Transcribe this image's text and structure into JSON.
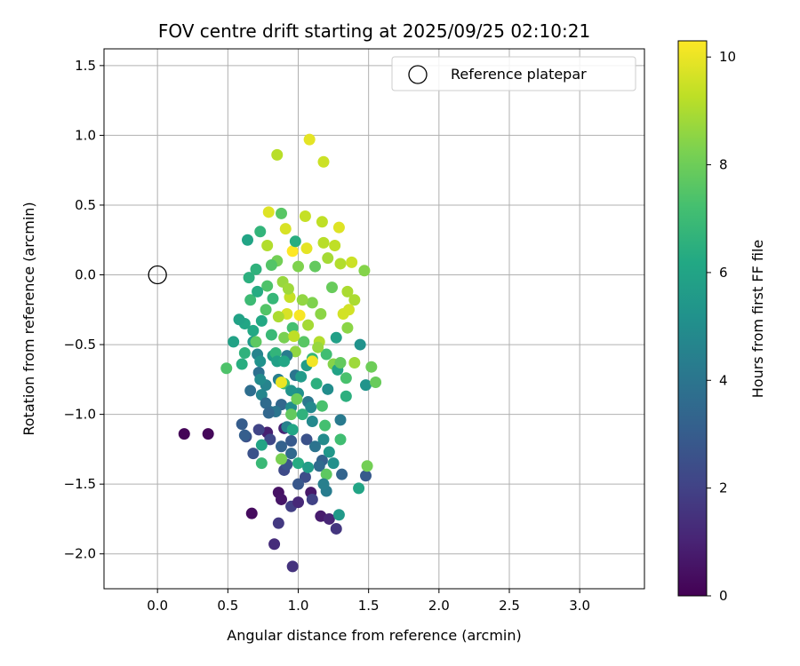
{
  "chart_data": {
    "type": "scatter",
    "title": "FOV centre drift starting at 2025/09/25 02:10:21",
    "xlabel": "Angular distance from reference (arcmin)",
    "ylabel": "Rotation from reference (arcmin)",
    "xlim": [
      -0.38,
      3.46
    ],
    "ylim": [
      -2.25,
      1.62
    ],
    "xticks": [
      0.0,
      0.5,
      1.0,
      1.5,
      2.0,
      2.5,
      3.0
    ],
    "xtick_labels": [
      "0.0",
      "0.5",
      "1.0",
      "1.5",
      "2.0",
      "2.5",
      "3.0"
    ],
    "yticks": [
      -2.0,
      -1.5,
      -1.0,
      -0.5,
      0.0,
      0.5,
      1.0,
      1.5
    ],
    "ytick_labels": [
      "−2.0",
      "−1.5",
      "−1.0",
      "−0.5",
      "0.0",
      "0.5",
      "1.0",
      "1.5"
    ],
    "grid": true,
    "legend": {
      "position": "top-right",
      "entries": [
        "Reference platepar"
      ]
    },
    "colorbar": {
      "label": "Hours from first FF file",
      "range": [
        0,
        10.3
      ],
      "ticks": [
        0,
        2,
        4,
        6,
        8,
        10
      ],
      "tick_labels": [
        "0",
        "2",
        "4",
        "6",
        "8",
        "10"
      ],
      "colormap": "viridis"
    },
    "reference_point": {
      "x": 0.0,
      "y": 0.0
    },
    "points": [
      [
        0.19,
        -1.14,
        0.1
      ],
      [
        0.36,
        -1.14,
        0.2
      ],
      [
        0.67,
        -1.71,
        0.3
      ],
      [
        0.86,
        -1.56,
        0.5
      ],
      [
        0.88,
        -1.61,
        0.6
      ],
      [
        1.09,
        -1.56,
        0.7
      ],
      [
        1.16,
        -1.73,
        0.8
      ],
      [
        0.78,
        -1.13,
        0.9
      ],
      [
        0.9,
        -1.1,
        1.0
      ],
      [
        1.22,
        -1.75,
        1.1
      ],
      [
        0.83,
        -1.93,
        1.3
      ],
      [
        0.96,
        -2.09,
        1.5
      ],
      [
        1.27,
        -1.82,
        1.6
      ],
      [
        0.86,
        -1.78,
        1.7
      ],
      [
        0.95,
        -1.66,
        1.9
      ],
      [
        1.1,
        -1.61,
        2.0
      ],
      [
        0.72,
        -1.11,
        2.1
      ],
      [
        0.8,
        -1.18,
        2.2
      ],
      [
        0.9,
        -1.4,
        2.3
      ],
      [
        1.05,
        -1.45,
        2.4
      ],
      [
        0.63,
        -1.16,
        2.5
      ],
      [
        0.68,
        -1.28,
        2.6
      ],
      [
        0.92,
        -1.36,
        2.7
      ],
      [
        1.0,
        -1.5,
        2.8
      ],
      [
        1.48,
        -1.44,
        2.9
      ],
      [
        0.6,
        -1.07,
        3.0
      ],
      [
        0.62,
        -1.15,
        3.1
      ],
      [
        1.17,
        -1.33,
        3.2
      ],
      [
        1.31,
        -1.43,
        3.3
      ],
      [
        0.88,
        -0.93,
        3.4
      ],
      [
        0.95,
        -1.28,
        3.5
      ],
      [
        1.15,
        -1.37,
        3.6
      ],
      [
        0.66,
        -0.83,
        3.7
      ],
      [
        0.72,
        -0.7,
        3.8
      ],
      [
        0.8,
        -0.98,
        3.9
      ],
      [
        0.98,
        -0.72,
        4.0
      ],
      [
        1.07,
        -0.91,
        4.1
      ],
      [
        1.3,
        -1.04,
        4.2
      ],
      [
        1.2,
        -1.55,
        4.3
      ],
      [
        0.86,
        -0.75,
        4.4
      ],
      [
        0.92,
        -1.09,
        4.5
      ],
      [
        0.71,
        -0.57,
        4.6
      ],
      [
        0.74,
        -0.86,
        4.7
      ],
      [
        1.1,
        -1.05,
        4.8
      ],
      [
        1.18,
        -1.18,
        4.9
      ],
      [
        0.95,
        -0.95,
        5.0
      ],
      [
        1.0,
        -0.85,
        5.1
      ],
      [
        1.44,
        -0.5,
        5.2
      ],
      [
        1.48,
        -0.79,
        5.3
      ],
      [
        1.22,
        -1.27,
        5.4
      ],
      [
        1.29,
        -1.72,
        5.5
      ],
      [
        0.82,
        -0.58,
        5.6
      ],
      [
        1.06,
        -0.65,
        5.7
      ],
      [
        1.27,
        -0.45,
        5.8
      ],
      [
        0.54,
        -0.48,
        5.9
      ],
      [
        1.43,
        -1.53,
        6.0
      ],
      [
        0.96,
        -1.11,
        6.1
      ],
      [
        0.68,
        -0.4,
        6.2
      ],
      [
        1.0,
        -1.35,
        6.3
      ],
      [
        0.6,
        -0.64,
        6.4
      ],
      [
        0.65,
        -0.02,
        6.5
      ],
      [
        0.7,
        0.04,
        6.6
      ],
      [
        0.84,
        -0.56,
        6.7
      ],
      [
        1.1,
        -0.6,
        6.8
      ],
      [
        0.74,
        -1.35,
        6.9
      ],
      [
        0.9,
        -0.78,
        7.0
      ],
      [
        1.3,
        -1.18,
        7.1
      ],
      [
        1.19,
        -1.08,
        7.2
      ],
      [
        1.34,
        -0.74,
        7.3
      ],
      [
        0.49,
        -0.67,
        7.4
      ],
      [
        0.77,
        -0.25,
        7.5
      ],
      [
        0.88,
        0.44,
        7.6
      ],
      [
        1.2,
        -1.43,
        7.7
      ],
      [
        0.95,
        -1.0,
        7.8
      ],
      [
        1.55,
        -0.77,
        7.9
      ],
      [
        1.52,
        -0.66,
        8.0
      ],
      [
        1.49,
        -1.37,
        8.1
      ],
      [
        0.88,
        -1.32,
        8.2
      ],
      [
        1.1,
        -0.2,
        8.3
      ],
      [
        1.25,
        -0.64,
        8.4
      ],
      [
        1.35,
        -0.38,
        8.5
      ],
      [
        0.98,
        -0.55,
        8.6
      ],
      [
        0.89,
        -0.05,
        8.7
      ],
      [
        1.4,
        -0.63,
        8.8
      ],
      [
        1.21,
        0.12,
        8.9
      ],
      [
        1.35,
        -0.12,
        9.0
      ],
      [
        1.3,
        0.08,
        9.1
      ],
      [
        0.85,
        0.86,
        9.2
      ],
      [
        1.17,
        0.38,
        9.3
      ],
      [
        1.05,
        0.42,
        9.4
      ],
      [
        1.18,
        0.81,
        9.5
      ],
      [
        1.32,
        -0.28,
        9.6
      ],
      [
        0.92,
        -0.28,
        9.7
      ],
      [
        0.79,
        0.45,
        9.8
      ],
      [
        1.08,
        0.97,
        9.9
      ],
      [
        0.88,
        -0.77,
        10.0
      ],
      [
        1.1,
        -0.62,
        10.1
      ],
      [
        1.01,
        -0.29,
        10.2
      ],
      [
        0.96,
        0.17,
        10.3
      ],
      [
        0.74,
        -0.33,
        6.2
      ],
      [
        0.82,
        -0.17,
        6.8
      ],
      [
        0.96,
        -0.38,
        7.2
      ],
      [
        1.03,
        -0.18,
        8.6
      ],
      [
        1.15,
        -0.48,
        9.1
      ],
      [
        1.24,
        -0.09,
        7.9
      ],
      [
        0.68,
        -0.48,
        5.5
      ],
      [
        0.77,
        -0.79,
        4.6
      ],
      [
        0.85,
        -0.62,
        5.8
      ],
      [
        0.9,
        -0.45,
        8.2
      ],
      [
        1.07,
        -0.36,
        8.9
      ],
      [
        1.13,
        -0.78,
        6.5
      ],
      [
        1.2,
        -0.57,
        7.1
      ],
      [
        1.28,
        -0.68,
        5.9
      ],
      [
        0.94,
        -0.16,
        9.4
      ],
      [
        0.86,
        -0.3,
        9.0
      ],
      [
        1.0,
        0.06,
        8.3
      ],
      [
        1.12,
        0.06,
        7.8
      ],
      [
        1.16,
        -0.28,
        8.5
      ],
      [
        1.04,
        -0.48,
        7.6
      ],
      [
        0.98,
        0.24,
        6.4
      ],
      [
        0.81,
        -0.43,
        6.9
      ],
      [
        0.73,
        -0.62,
        5.2
      ],
      [
        0.92,
        -0.58,
        4.3
      ],
      [
        1.02,
        -0.73,
        5.6
      ],
      [
        1.09,
        -0.95,
        4.8
      ],
      [
        0.77,
        -0.92,
        3.6
      ],
      [
        1.17,
        -0.94,
        7.3
      ],
      [
        0.88,
        -1.23,
        3.2
      ],
      [
        0.74,
        -1.22,
        6.0
      ],
      [
        1.06,
        -1.18,
        2.6
      ],
      [
        1.25,
        -1.35,
        5.1
      ],
      [
        0.62,
        -0.35,
        6.1
      ],
      [
        0.66,
        -0.18,
        7.0
      ],
      [
        0.78,
        -0.08,
        7.4
      ],
      [
        0.85,
        0.1,
        8.1
      ],
      [
        0.93,
        -0.1,
        8.8
      ],
      [
        1.18,
        0.23,
        9.2
      ],
      [
        1.26,
        0.21,
        9.3
      ],
      [
        1.4,
        -0.18,
        9.0
      ],
      [
        1.36,
        -0.25,
        9.6
      ],
      [
        1.47,
        0.03,
        8.4
      ],
      [
        1.38,
        0.09,
        9.5
      ],
      [
        1.29,
        0.34,
        9.8
      ],
      [
        1.06,
        0.19,
        9.9
      ],
      [
        0.91,
        0.33,
        9.7
      ],
      [
        0.73,
        0.31,
        6.7
      ],
      [
        0.78,
        0.21,
        9.1
      ],
      [
        0.71,
        -0.12,
        6.3
      ],
      [
        0.64,
        0.25,
        6.0
      ],
      [
        0.81,
        0.07,
        7.5
      ],
      [
        0.84,
        -0.98,
        4.0
      ],
      [
        0.95,
        -0.83,
        5.3
      ],
      [
        1.12,
        -1.23,
        3.9
      ],
      [
        1.03,
        -1.0,
        6.6
      ],
      [
        0.99,
        -0.89,
        8.0
      ],
      [
        1.21,
        -0.82,
        5.0
      ],
      [
        1.34,
        -0.87,
        6.5
      ],
      [
        1.3,
        -0.63,
        7.8
      ],
      [
        1.14,
        -0.52,
        8.7
      ],
      [
        0.97,
        -0.44,
        9.3
      ],
      [
        0.9,
        -0.62,
        6.1
      ],
      [
        0.7,
        -0.48,
        7.7
      ],
      [
        0.62,
        -0.56,
        6.6
      ],
      [
        0.58,
        -0.32,
        5.9
      ],
      [
        0.73,
        -0.75,
        4.9
      ],
      [
        0.79,
        -0.99,
        3.4
      ],
      [
        0.95,
        -1.19,
        2.9
      ],
      [
        1.07,
        -1.38,
        5.7
      ],
      [
        1.0,
        -1.63,
        1.2
      ],
      [
        1.18,
        -1.5,
        4.4
      ]
    ]
  }
}
